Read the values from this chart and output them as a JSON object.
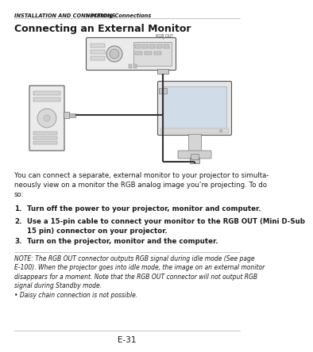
{
  "header_bold_italic": "INSTALLATION AND CONNECTIONS",
  "header_arrow": " > ",
  "header_section": "Making Connections",
  "title": "Connecting an External Monitor",
  "body_text": "You can connect a separate, external monitor to your projector to simulta-\nneously view on a monitor the RGB analog image you’re projecting. To do\nso:",
  "steps": [
    {
      "num": "1.",
      "text": "Turn off the power to your projector, monitor and computer."
    },
    {
      "num": "2.",
      "text": "Use a 15-pin cable to connect your monitor to the RGB OUT (Mini D-Sub\n15 pin) connector on your projector."
    },
    {
      "num": "3.",
      "text": "Turn on the projector, monitor and the computer."
    }
  ],
  "note_text": "NOTE: The RGB OUT connector outputs RGB signal during idle mode (See page\nE-100). When the projector goes into idle mode, the image on an external monitor\ndisappears for a moment. Note that the RGB OUT connector will not output RGB\nsignal during Standby mode.\n• Daisy chain connection is not possible.",
  "page_number": "E-31",
  "bg_color": "#ffffff",
  "text_color": "#1a1a1a",
  "header_color": "#1a1a1a",
  "note_color": "#1a1a1a",
  "line_color": "#999999",
  "diagram_edge": "#555555",
  "diagram_fill": "#e8e8e8",
  "cable_color": "#333333"
}
